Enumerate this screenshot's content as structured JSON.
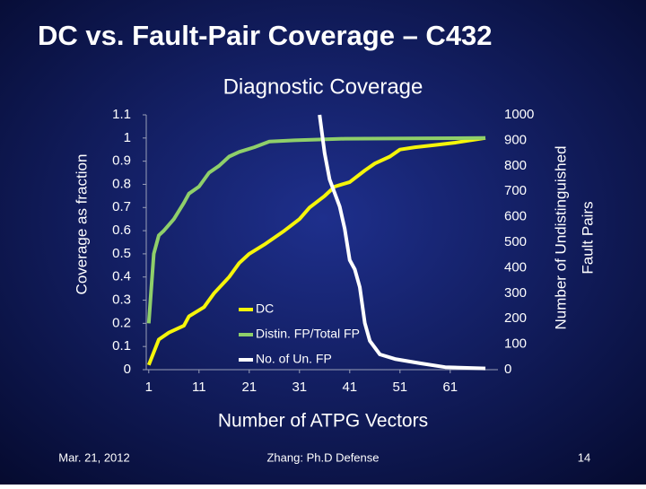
{
  "slide_title": "DC vs. Fault-Pair Coverage – C432",
  "chart_data": {
    "type": "line",
    "title": "Diagnostic Coverage",
    "xlabel": "Number of ATPG Vectors",
    "ylabel": "Coverage as fraction",
    "y2label": [
      "Number of Undistinguished",
      "Fault Pairs"
    ],
    "xlim": [
      0.5,
      70.5
    ],
    "xticks": [
      1,
      11,
      21,
      31,
      41,
      51,
      61
    ],
    "ylim": [
      0,
      1.1
    ],
    "yticks": [
      0,
      0.1,
      0.2,
      0.3,
      0.4,
      0.5,
      0.6,
      0.7,
      0.8,
      0.9,
      1,
      1.1
    ],
    "y2lim": [
      0,
      1000
    ],
    "y2ticks": [
      0,
      100,
      200,
      300,
      400,
      500,
      600,
      700,
      800,
      900,
      1000
    ],
    "series": [
      {
        "name": "DC",
        "color": "#f5f50a",
        "x": [
          1,
          3,
          5,
          8,
          9,
          12,
          14,
          17,
          19,
          21,
          24,
          28,
          31,
          33,
          36,
          38,
          41,
          44,
          46,
          49,
          51,
          54,
          58,
          62,
          68
        ],
        "values": [
          0.02,
          0.13,
          0.16,
          0.19,
          0.23,
          0.27,
          0.33,
          0.4,
          0.46,
          0.5,
          0.54,
          0.6,
          0.65,
          0.7,
          0.75,
          0.79,
          0.81,
          0.86,
          0.89,
          0.92,
          0.95,
          0.96,
          0.97,
          0.98,
          1.0
        ]
      },
      {
        "name": "Distin. FP/Total FP",
        "color": "#8fcf6a",
        "x": [
          1,
          2,
          3,
          4,
          6,
          8,
          9,
          11,
          13,
          15,
          17,
          19,
          22,
          25,
          30,
          40,
          68
        ],
        "values": [
          0.2,
          0.5,
          0.58,
          0.6,
          0.65,
          0.72,
          0.76,
          0.79,
          0.85,
          0.88,
          0.92,
          0.94,
          0.96,
          0.985,
          0.99,
          0.997,
          1.0
        ]
      },
      {
        "name": "No. of Un. FP",
        "color": "#ffffff",
        "axis": "y2",
        "x": [
          35,
          36,
          37,
          39,
          40,
          41,
          42,
          43,
          44,
          45,
          47,
          50,
          55,
          60,
          68
        ],
        "values": [
          1000,
          850,
          746,
          640,
          553,
          430,
          394,
          324,
          183,
          113,
          60,
          42,
          25,
          10,
          5
        ]
      }
    ]
  },
  "footer": {
    "date": "Mar. 21, 2012",
    "center": "Zhang: Ph.D Defense",
    "page": "14"
  }
}
